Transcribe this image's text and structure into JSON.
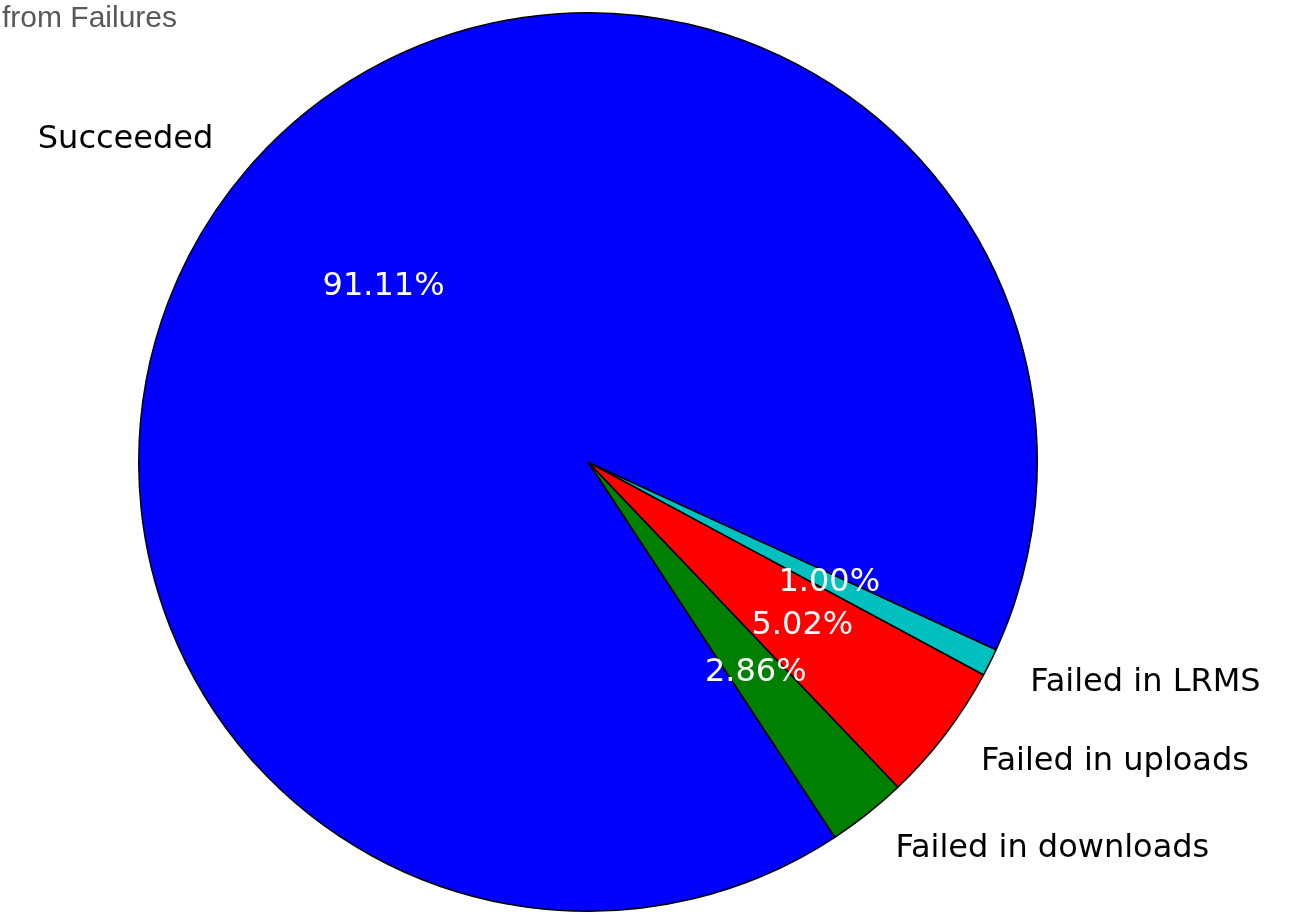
{
  "chart_data": {
    "type": "pie",
    "title": "from Failures",
    "categories": [
      "Succeeded",
      "Failed in downloads",
      "Failed in uploads",
      "Failed in LRMS"
    ],
    "values": [
      91.11,
      2.86,
      5.02,
      1.0
    ],
    "colors": [
      "#0000ff",
      "#008000",
      "#ff0000",
      "#00bfbf"
    ],
    "value_labels": [
      "91.11%",
      "2.86%",
      "5.02%",
      "1.00%"
    ],
    "legend": false
  }
}
